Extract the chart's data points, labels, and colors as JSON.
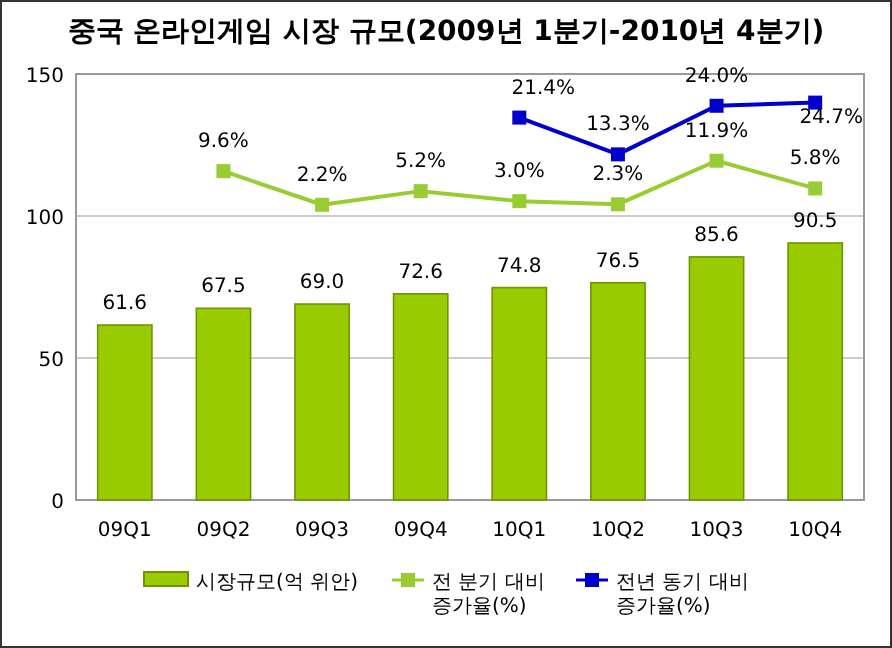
{
  "chart_data": {
    "type": "bar",
    "title": "중국 온라인게임 시장 규모(2009년 1분기-2010년 4분기)",
    "categories": [
      "09Q1",
      "09Q2",
      "09Q3",
      "09Q4",
      "10Q1",
      "10Q2",
      "10Q3",
      "10Q4"
    ],
    "series": [
      {
        "name": "시장규모(억 위안)",
        "color": "#99cc00",
        "values": [
          61.6,
          67.5,
          69.0,
          72.6,
          74.8,
          76.5,
          85.6,
          90.5
        ],
        "value_labels": [
          "61.6",
          "67.5",
          "69.0",
          "72.6",
          "74.8",
          "76.5",
          "85.6",
          "90.5"
        ]
      },
      {
        "name": "전 분기 대비\n증가율(%)",
        "type": "line",
        "axis": "y2",
        "color": "#99cc33",
        "values": [
          null,
          9.6,
          2.2,
          5.2,
          3.0,
          2.3,
          11.9,
          5.8
        ],
        "value_labels": [
          null,
          "9.6%",
          "2.2%",
          "5.2%",
          "3.0%",
          "2.3%",
          "11.9%",
          "5.8%"
        ]
      },
      {
        "name": "전년 동기 대비\n증가율(%)",
        "type": "line",
        "axis": "y2",
        "color": "#0000cc",
        "values": [
          null,
          null,
          null,
          null,
          21.4,
          13.3,
          24.0,
          24.7
        ],
        "value_labels": [
          null,
          null,
          null,
          null,
          "21.4%",
          "13.3%",
          "24.0%",
          "24.7%"
        ]
      }
    ],
    "ylim": [
      0,
      150
    ],
    "yticks": [
      0,
      50,
      100,
      150
    ],
    "grid": "y",
    "legend": "bottom",
    "marker": "square",
    "line_style": "solid"
  }
}
